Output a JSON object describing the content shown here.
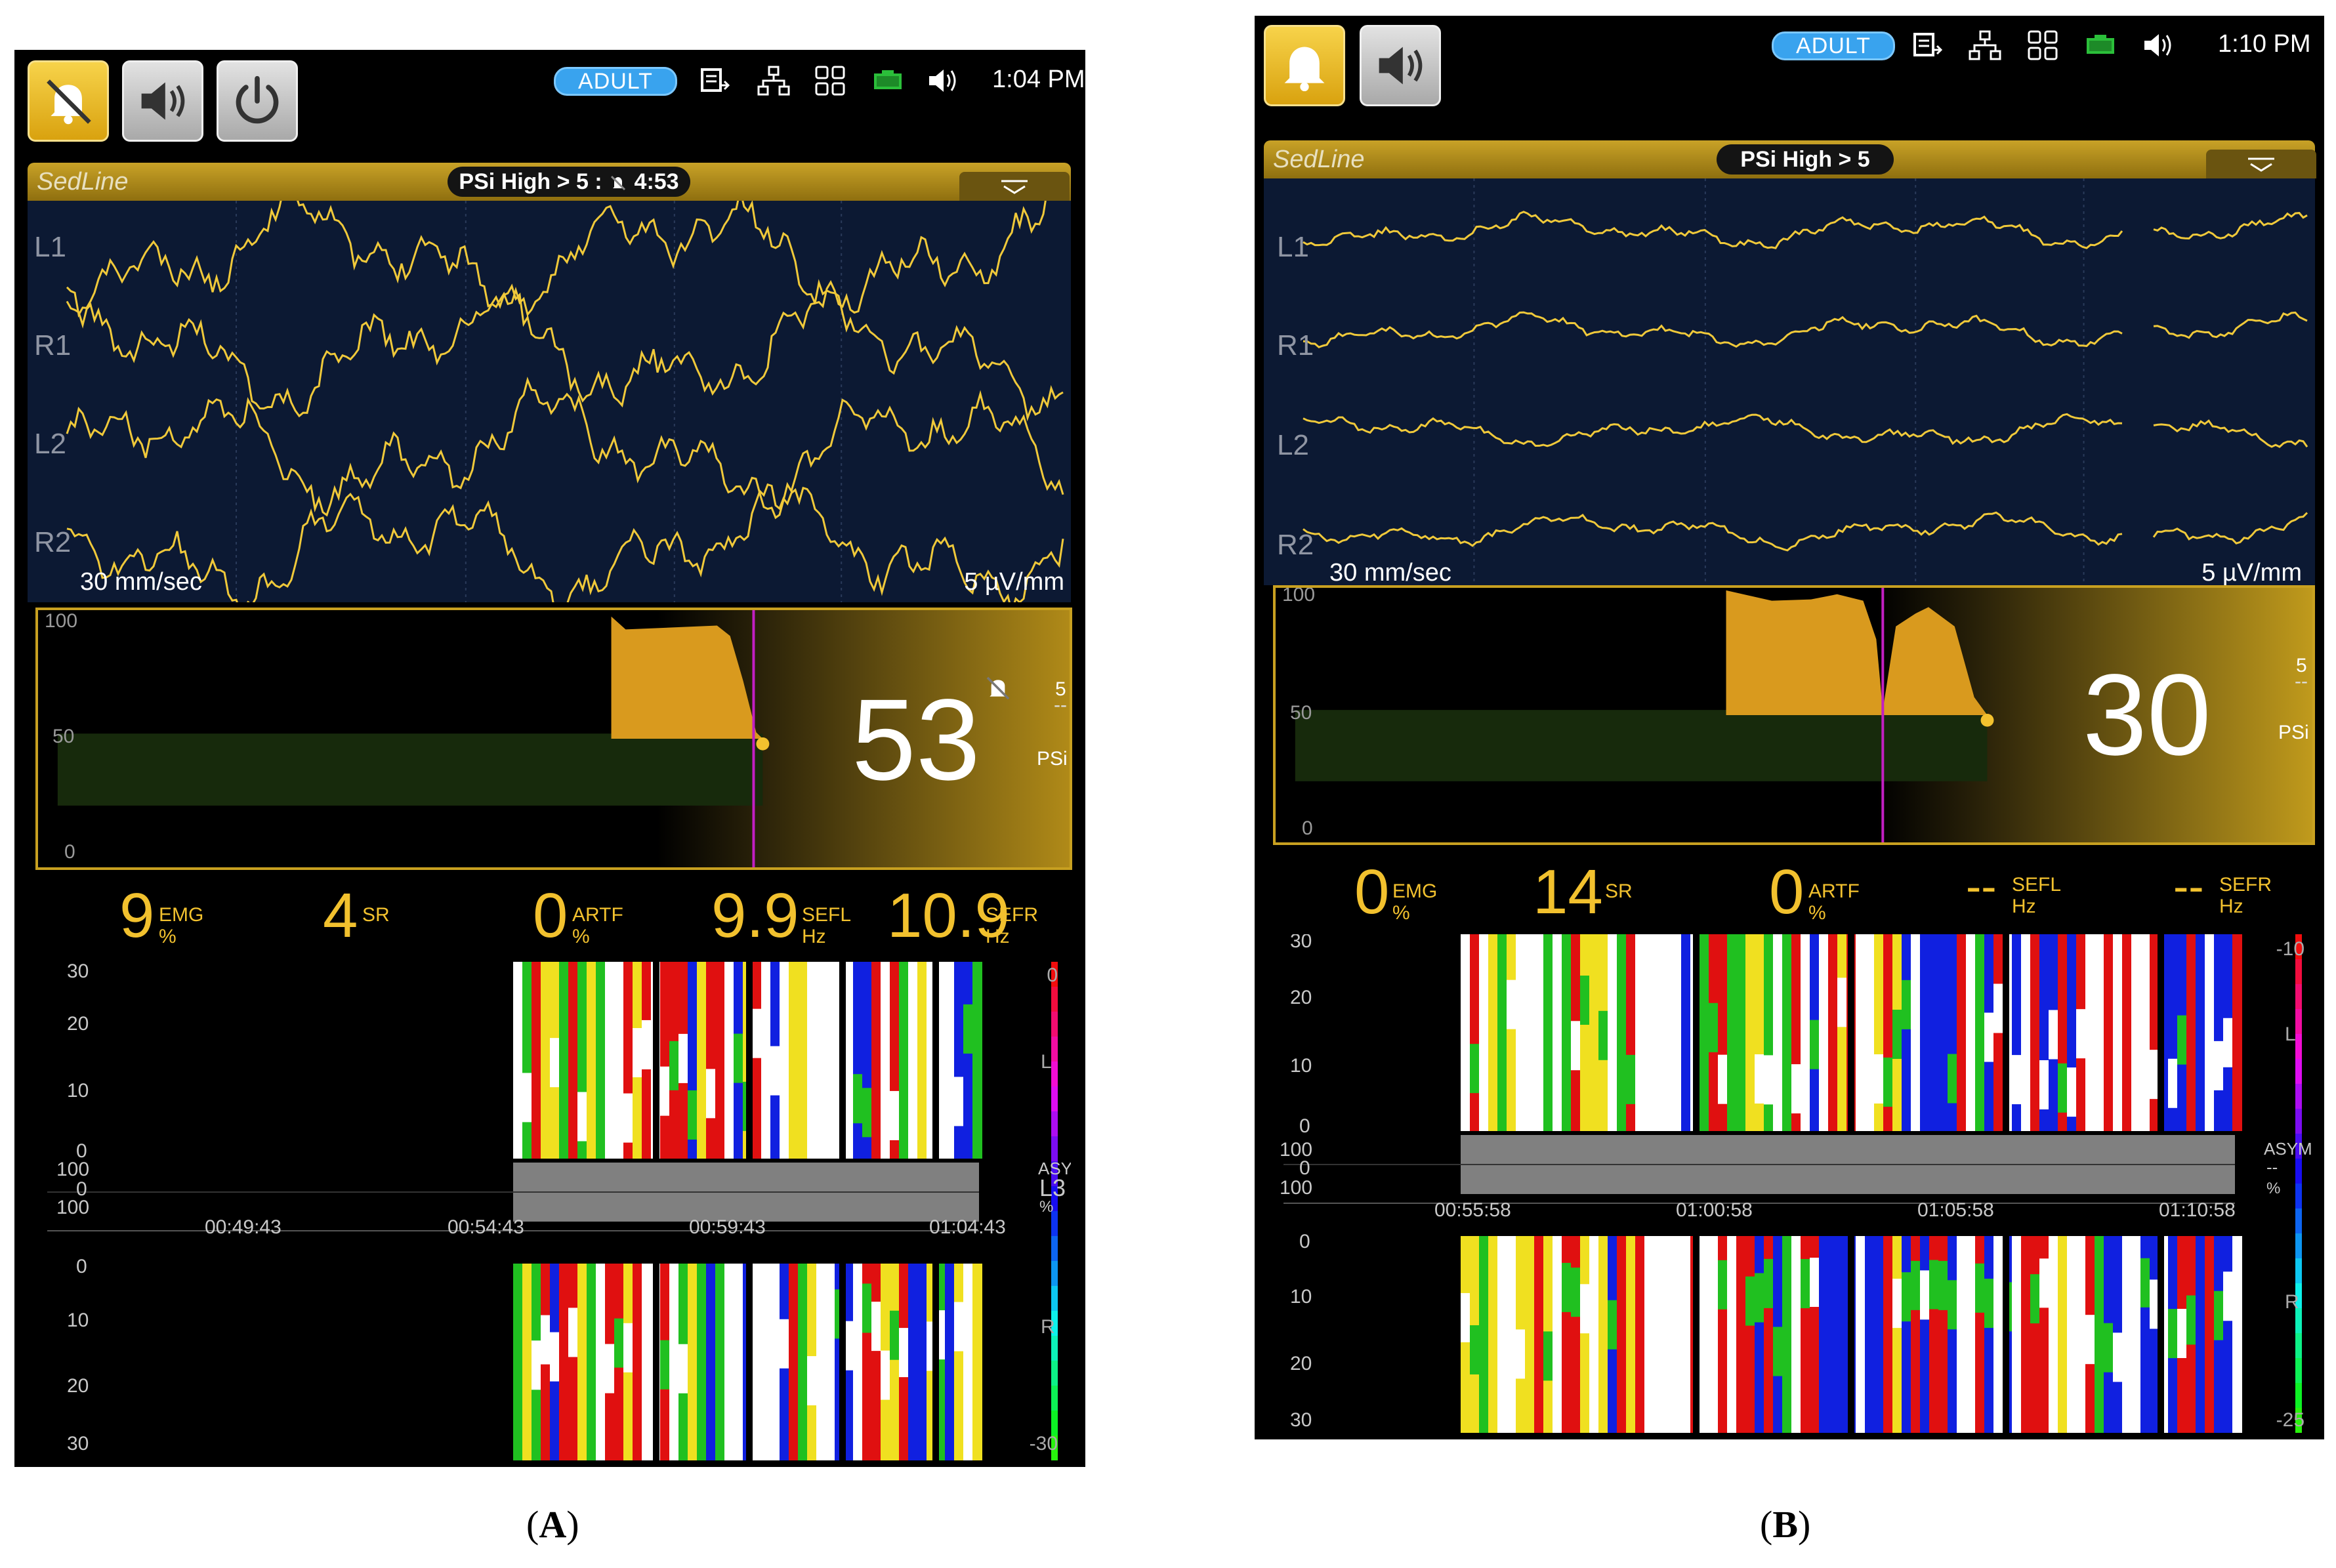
{
  "panels": [
    {
      "caption_open": "(",
      "caption_letter": "A",
      "caption_close": ")",
      "alarm_button_state": "silenced",
      "status": {
        "patient_mode": "ADULT",
        "time": "1:04 PM"
      },
      "sedline": {
        "title": "SedLine",
        "alarm_text": "PSi High > 5 :",
        "alarm_timer": "4:53"
      },
      "eeg": {
        "channels": [
          "L1",
          "R1",
          "L2",
          "R2"
        ],
        "sweep_speed": "30 mm/sec",
        "sensitivity": "5 µV/mm"
      },
      "trend": {
        "y_ticks": [
          "100",
          "50",
          "0"
        ],
        "psi_value": "53",
        "limit": "5",
        "limit_dash": "--",
        "psi_label": "PSi"
      },
      "params": [
        {
          "value": "9",
          "label": "EMG",
          "unit": "%"
        },
        {
          "value": "4",
          "label": "SR",
          "unit": ""
        },
        {
          "value": "0",
          "label": "ARTF",
          "unit": "%"
        },
        {
          "value": "9.9",
          "label": "SEFL",
          "unit": "Hz"
        },
        {
          "value": "10.9",
          "label": "SEFR",
          "unit": "Hz"
        }
      ],
      "dsa": {
        "top_ticks": [
          "30",
          "20",
          "10",
          "0"
        ],
        "asym_ticks": [
          "100",
          "0",
          "100"
        ],
        "bottom_ticks": [
          "0",
          "10",
          "20",
          "30"
        ],
        "times": [
          "00:49:43",
          "00:54:43",
          "00:59:43",
          "01:04:43"
        ],
        "scale_top": "0",
        "scale_bottom": "-30",
        "left_label": "L",
        "right_label": "R",
        "asym_label": "ASYM",
        "asym_value": "L3",
        "asym_unit": "%"
      }
    },
    {
      "caption_open": "(",
      "caption_letter": "B",
      "caption_close": ")",
      "alarm_button_state": "active",
      "status": {
        "patient_mode": "ADULT",
        "time": "1:10 PM"
      },
      "sedline": {
        "title": "SedLine",
        "alarm_text": "PSi High > 5",
        "alarm_timer": ""
      },
      "eeg": {
        "channels": [
          "L1",
          "R1",
          "L2",
          "R2"
        ],
        "sweep_speed": "30 mm/sec",
        "sensitivity": "5 µV/mm"
      },
      "trend": {
        "y_ticks": [
          "100",
          "50",
          "0"
        ],
        "psi_value": "30",
        "limit": "5",
        "limit_dash": "--",
        "psi_label": "PSi"
      },
      "params": [
        {
          "value": "0",
          "label": "EMG",
          "unit": "%"
        },
        {
          "value": "14",
          "label": "SR",
          "unit": ""
        },
        {
          "value": "0",
          "label": "ARTF",
          "unit": "%"
        },
        {
          "value": "--",
          "label": "SEFL",
          "unit": "Hz"
        },
        {
          "value": "--",
          "label": "SEFR",
          "unit": "Hz"
        }
      ],
      "dsa": {
        "top_ticks": [
          "30",
          "20",
          "10",
          "0"
        ],
        "asym_ticks": [
          "100",
          "0",
          "100"
        ],
        "bottom_ticks": [
          "0",
          "10",
          "20",
          "30"
        ],
        "times": [
          "00:55:58",
          "01:00:58",
          "01:05:58",
          "01:10:58"
        ],
        "scale_top": "-10",
        "scale_bottom": "-25",
        "left_label": "L",
        "right_label": "R",
        "asym_label": "ASYM",
        "asym_value": "--",
        "asym_unit": "%"
      }
    }
  ],
  "colors": {
    "accent_yellow": "#f2c12e",
    "eeg_trace": "#f0c93a",
    "eeg_bg": "#0c1933",
    "psi_fill": "#d99a1e",
    "marker": "#c21fc2",
    "asym_band": "#808080",
    "dsa_red": "#e01010",
    "dsa_blue": "#1020e0",
    "dsa_green": "#20c020"
  },
  "icons": [
    "alarm-silenced-icon",
    "bell-icon",
    "speaker-icon",
    "power-icon",
    "export-icon",
    "network-icon",
    "grid-icon",
    "battery-icon",
    "volume-icon"
  ]
}
